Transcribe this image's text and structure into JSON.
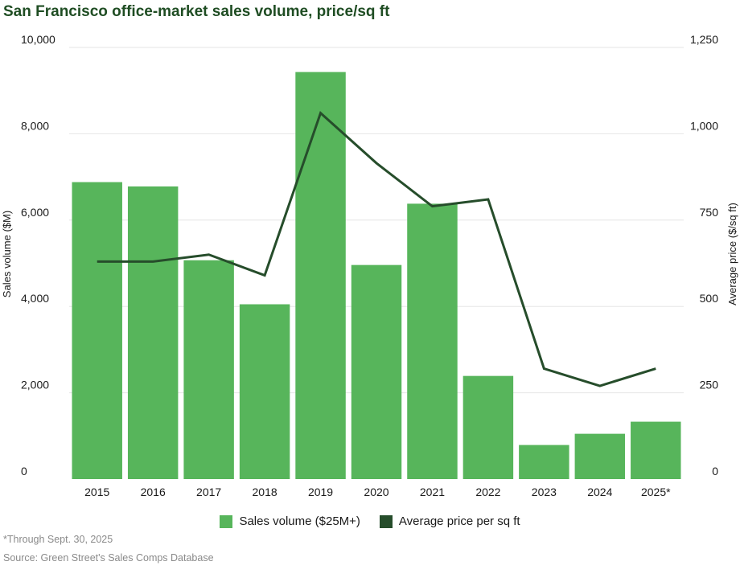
{
  "title": "San Francisco office-market sales volume, price/sq ft",
  "footnote": "*Through Sept. 30, 2025",
  "source": "Source: Green Street's Sales Comps Database",
  "colors": {
    "bar": "#57b55b",
    "line": "#264d2b",
    "grid": "#e6e6e6",
    "title": "#1f4d23"
  },
  "legend": {
    "bar_label": "Sales volume ($25M+)",
    "line_label": "Average price per sq ft"
  },
  "chart_data": {
    "type": "bar+line",
    "title": "San Francisco office-market sales volume, price/sq ft",
    "categories": [
      "2015",
      "2016",
      "2017",
      "2018",
      "2019",
      "2020",
      "2021",
      "2022",
      "2023",
      "2024",
      "2025*"
    ],
    "series": [
      {
        "name": "Sales volume ($25M+)",
        "type": "bar",
        "axis": "left",
        "values": [
          6880,
          6780,
          5070,
          4050,
          9430,
          4960,
          6380,
          2390,
          790,
          1050,
          1330
        ]
      },
      {
        "name": "Average price per sq ft",
        "type": "line",
        "axis": "right",
        "values": [
          630,
          630,
          650,
          590,
          1060,
          915,
          790,
          810,
          320,
          270,
          320
        ]
      }
    ],
    "y_left": {
      "label": "Sales volume ($M)",
      "min": 0,
      "max": 10000,
      "ticks": [
        0,
        2000,
        4000,
        6000,
        8000,
        10000
      ],
      "tick_labels": [
        "0",
        "2,000",
        "4,000",
        "6,000",
        "8,000",
        "10,000"
      ]
    },
    "y_right": {
      "label": "Average price ($/sq ft)",
      "min": 0,
      "max": 1250,
      "ticks": [
        0,
        250,
        500,
        750,
        1000,
        1250
      ],
      "tick_labels": [
        "0",
        "250",
        "500",
        "750",
        "1,000",
        "1,250"
      ]
    },
    "grid": true,
    "legend_position": "bottom-center"
  }
}
